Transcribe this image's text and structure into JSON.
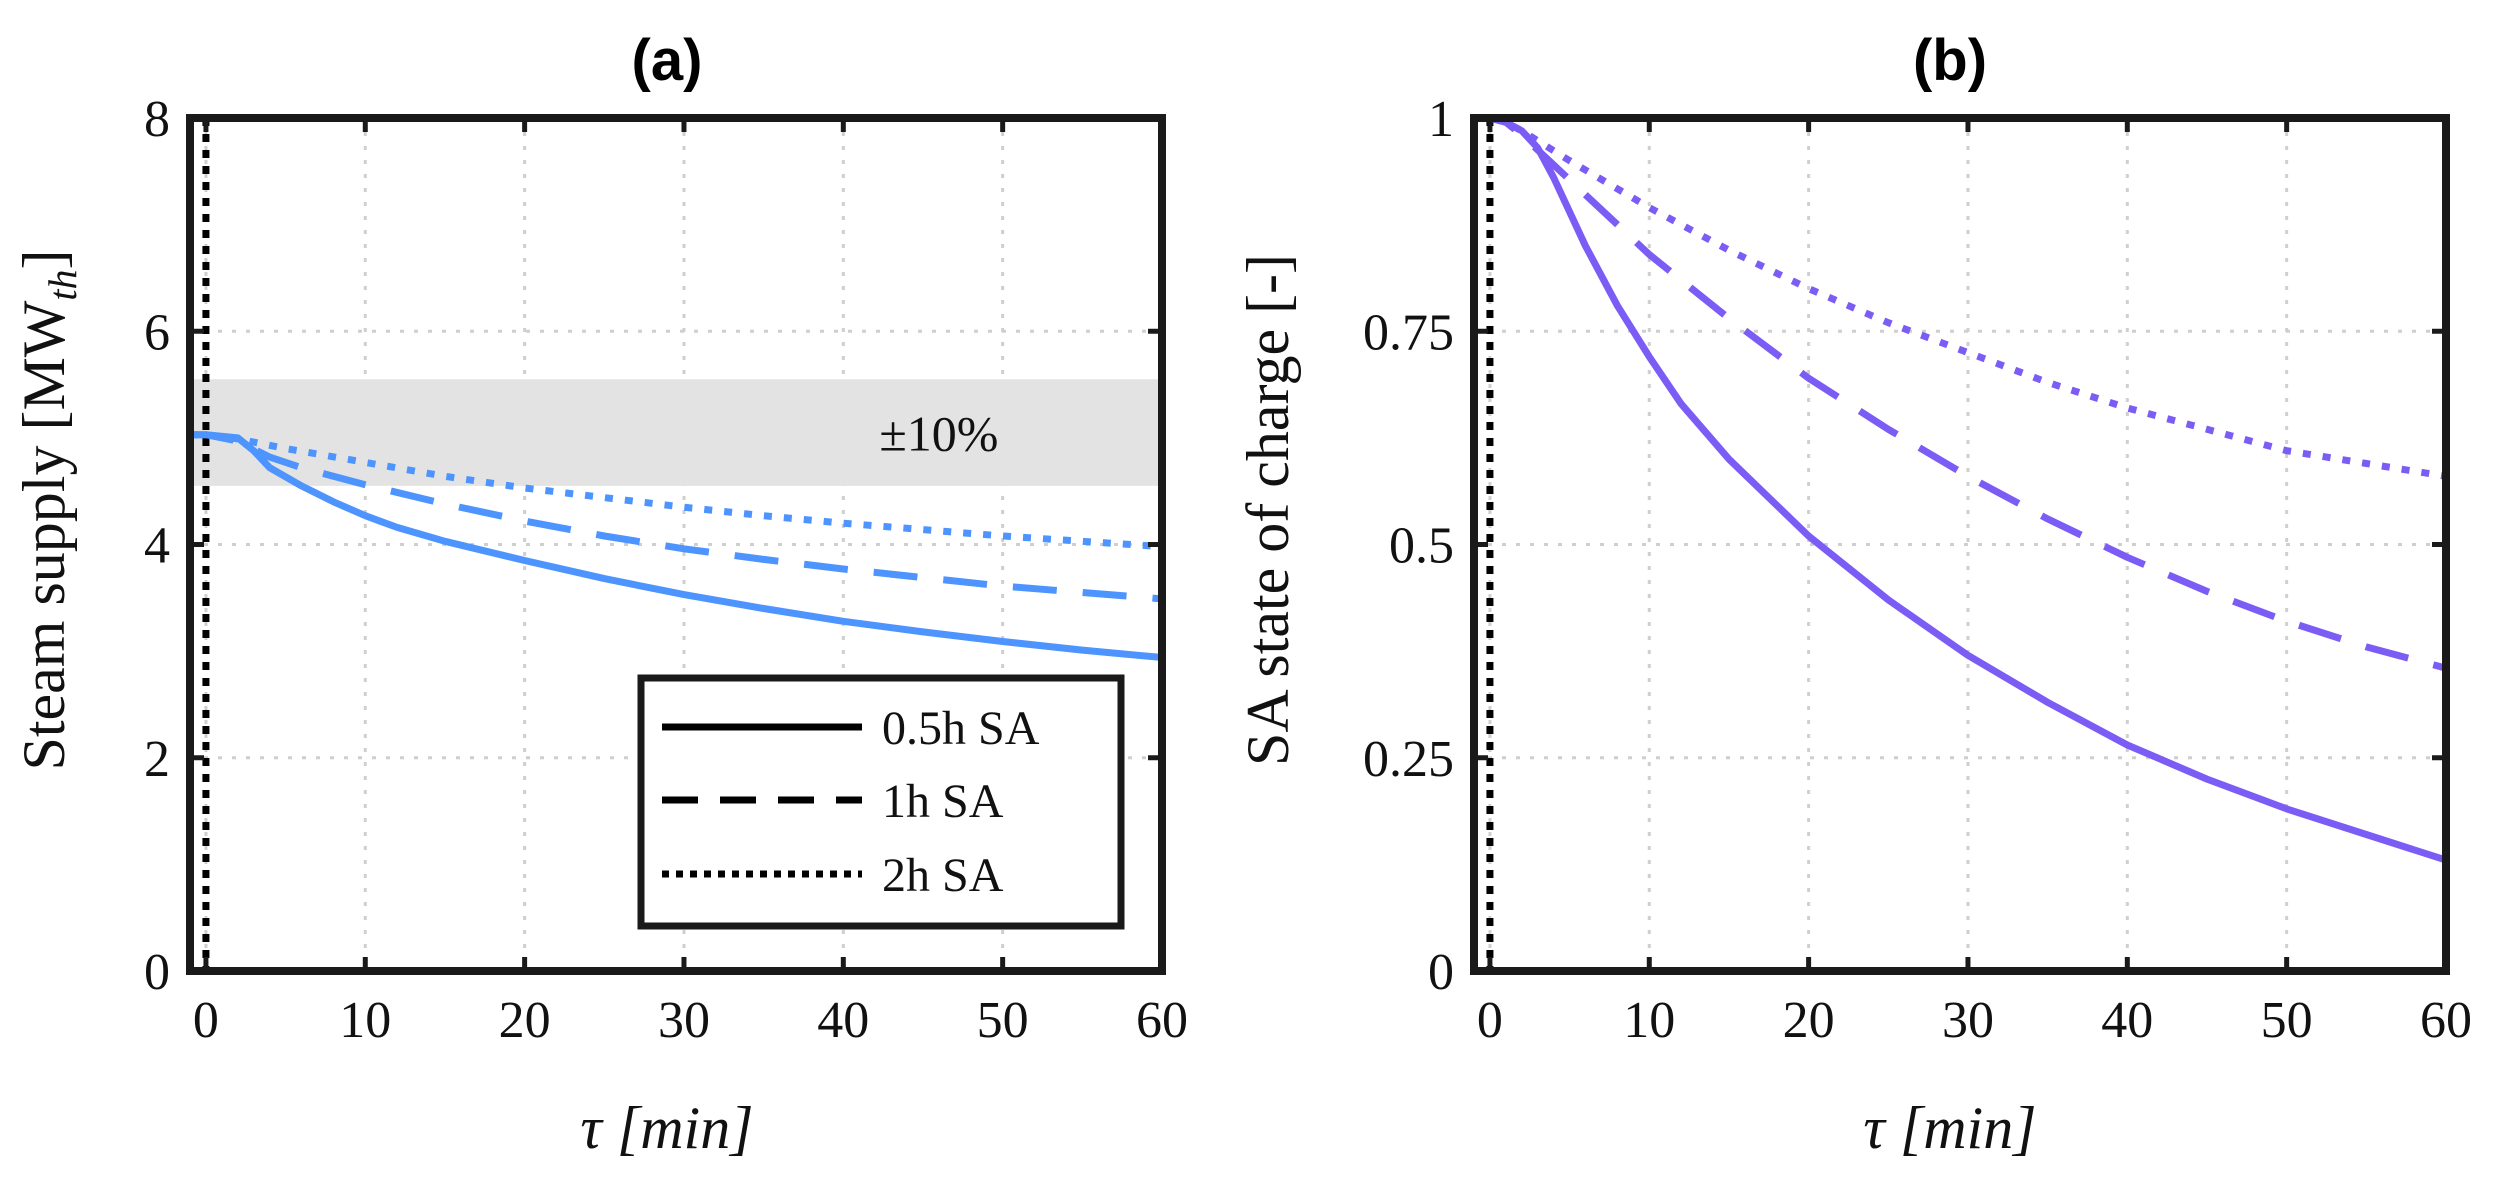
{
  "chart_data": [
    {
      "type": "line",
      "title": "(a)",
      "xlabel": "τ [min]",
      "ylabel": "Steam supply [MWth]",
      "ylabel_main": "Steam supply [MW",
      "ylabel_sub": "th",
      "ylabel_close": "]",
      "xlim": [
        -1,
        60
      ],
      "ylim": [
        0,
        8
      ],
      "xticks": [
        0,
        10,
        20,
        30,
        40,
        50,
        60
      ],
      "yticks": [
        0,
        2,
        4,
        6,
        8
      ],
      "grid": true,
      "color": "#4d94ff",
      "band": {
        "ymin": 4.55,
        "ymax": 5.55,
        "label": "±10%",
        "label_x": 46,
        "label_y": 5.05,
        "color": "#e3e3e3"
      },
      "vline": {
        "x": 0,
        "style": "dotted",
        "color": "#000000"
      },
      "legend": {
        "position": "lower-right",
        "entries": [
          {
            "label": "0.5h SA",
            "style": "solid"
          },
          {
            "label": "1h SA",
            "style": "dashed"
          },
          {
            "label": "2h SA",
            "style": "dotted"
          }
        ]
      },
      "series": [
        {
          "style": "solid",
          "x": [
            -1,
            0,
            2,
            3,
            4,
            6,
            8,
            10,
            12,
            15,
            20,
            25,
            30,
            35,
            40,
            45,
            50,
            55,
            60
          ],
          "y": [
            5.03,
            5.03,
            5.0,
            4.88,
            4.72,
            4.55,
            4.4,
            4.27,
            4.16,
            4.03,
            3.85,
            3.68,
            3.53,
            3.4,
            3.28,
            3.18,
            3.09,
            3.01,
            2.94
          ]
        },
        {
          "style": "dashed",
          "x": [
            -1,
            0,
            2,
            4,
            6,
            10,
            15,
            20,
            25,
            30,
            35,
            40,
            45,
            50,
            55,
            60
          ],
          "y": [
            5.03,
            5.03,
            4.97,
            4.82,
            4.72,
            4.56,
            4.38,
            4.22,
            4.08,
            3.96,
            3.86,
            3.77,
            3.69,
            3.61,
            3.55,
            3.49
          ]
        },
        {
          "style": "dotted",
          "x": [
            -1,
            0,
            2,
            5,
            10,
            15,
            20,
            25,
            30,
            35,
            40,
            45,
            50,
            55,
            60
          ],
          "y": [
            5.03,
            5.03,
            4.99,
            4.9,
            4.77,
            4.64,
            4.53,
            4.44,
            4.35,
            4.27,
            4.2,
            4.14,
            4.08,
            4.03,
            3.98
          ]
        }
      ]
    },
    {
      "type": "line",
      "title": "(b)",
      "xlabel": "τ [min]",
      "ylabel": "SA state of charge [-]",
      "xlim": [
        -1,
        60
      ],
      "ylim": [
        0,
        1
      ],
      "xticks": [
        0,
        10,
        20,
        30,
        40,
        50,
        60
      ],
      "yticks": [
        0,
        0.25,
        0.5,
        0.75,
        1
      ],
      "ytick_labels": [
        "0",
        "0.25",
        "0.5",
        "0.75",
        "1"
      ],
      "grid": true,
      "color": "#7b5cf5",
      "vline": {
        "x": 0,
        "style": "dotted",
        "color": "#000000"
      },
      "series": [
        {
          "style": "solid",
          "x": [
            -1,
            0,
            1,
            2,
            3,
            4,
            6,
            8,
            10,
            12,
            15,
            20,
            25,
            30,
            35,
            40,
            45,
            50,
            55,
            60
          ],
          "y": [
            1.0,
            1.0,
            0.995,
            0.985,
            0.965,
            0.93,
            0.85,
            0.78,
            0.72,
            0.665,
            0.6,
            0.51,
            0.435,
            0.37,
            0.315,
            0.265,
            0.225,
            0.19,
            0.16,
            0.13
          ]
        },
        {
          "style": "dashed",
          "x": [
            -1,
            0,
            1,
            2,
            4,
            6,
            10,
            15,
            20,
            25,
            30,
            35,
            40,
            45,
            50,
            55,
            60
          ],
          "y": [
            1.0,
            1.0,
            0.995,
            0.98,
            0.945,
            0.91,
            0.84,
            0.765,
            0.695,
            0.635,
            0.58,
            0.53,
            0.485,
            0.445,
            0.41,
            0.38,
            0.355
          ]
        },
        {
          "style": "dotted",
          "x": [
            -1,
            0,
            1,
            2,
            5,
            10,
            15,
            20,
            25,
            30,
            35,
            40,
            45,
            50,
            55,
            60
          ],
          "y": [
            1.0,
            1.0,
            0.995,
            0.985,
            0.95,
            0.895,
            0.845,
            0.8,
            0.76,
            0.725,
            0.69,
            0.66,
            0.635,
            0.61,
            0.595,
            0.58
          ]
        }
      ]
    }
  ]
}
